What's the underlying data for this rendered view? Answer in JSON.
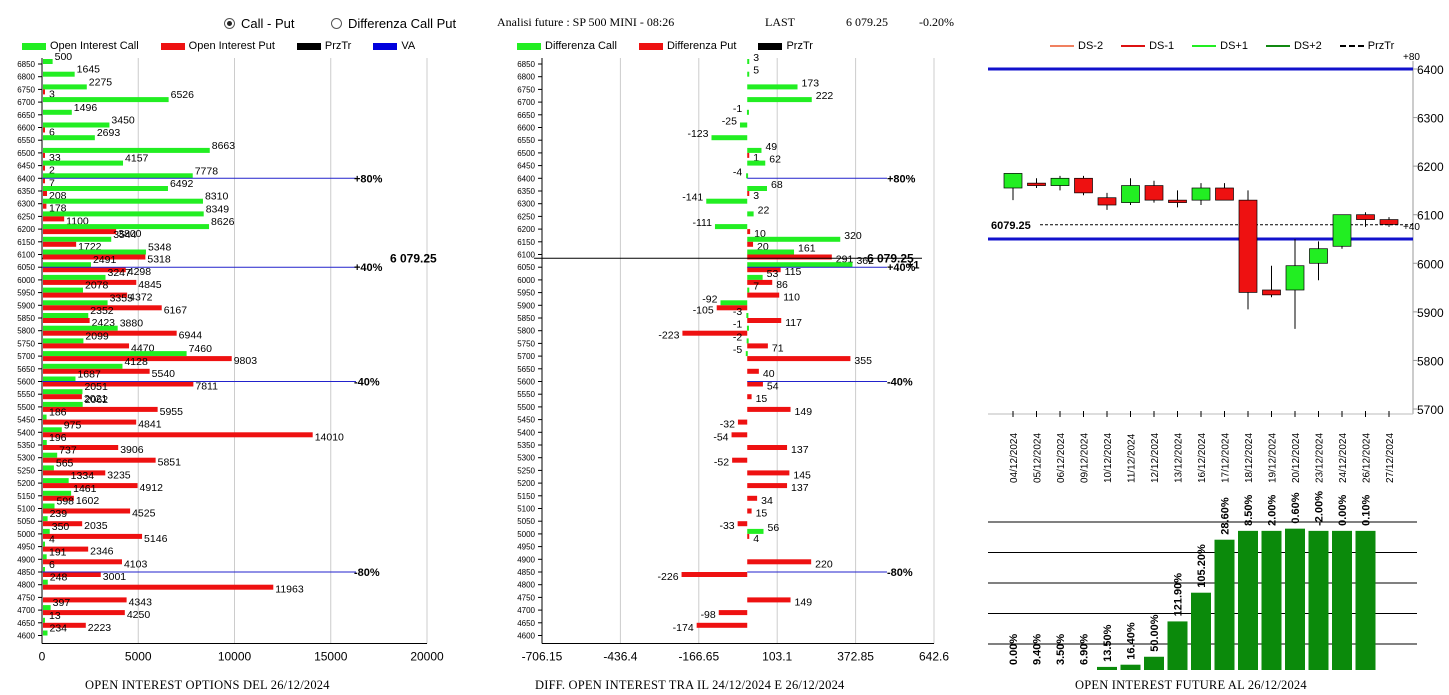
{
  "header": {
    "radio_options": [
      {
        "label": "Call - Put",
        "selected": true
      },
      {
        "label": "Differenza Call Put",
        "selected": false
      }
    ],
    "title": "Analisi future : SP 500 MINI - 08:26",
    "last_label": "LAST",
    "last_value": "6 079.25",
    "change": "-0.20%"
  },
  "colors": {
    "green": "#22ee22",
    "red": "#ee1111",
    "black": "#000000",
    "blue": "#0000dd",
    "dark_green": "#0b8a0b"
  },
  "legends": {
    "oi": [
      {
        "label": "Open Interest Call",
        "color": "#22ee22"
      },
      {
        "label": "Open Interest Put",
        "color": "#ee1111"
      },
      {
        "label": "PrzTr",
        "color": "#000000"
      },
      {
        "label": "VA",
        "color": "#0000dd"
      }
    ],
    "diff": [
      {
        "label": "Differenza Call",
        "color": "#22ee22"
      },
      {
        "label": "Differenza Put",
        "color": "#ee1111"
      },
      {
        "label": "PrzTr",
        "color": "#000000"
      }
    ],
    "future": [
      {
        "label": "DS-2",
        "color": "#f08060",
        "style": "solid"
      },
      {
        "label": "DS-1",
        "color": "#dd1111",
        "style": "solid"
      },
      {
        "label": "DS+1",
        "color": "#22ee22",
        "style": "solid"
      },
      {
        "label": "DS+2",
        "color": "#118811",
        "style": "solid"
      },
      {
        "label": "PrzTr",
        "color": "#000000",
        "style": "dashed"
      }
    ]
  },
  "footers": {
    "oi": "OPEN INTEREST OPTIONS DEL 26/12/2024",
    "diff": "DIFF. OPEN INTEREST TRA IL 24/12/2024 E 26/12/2024",
    "future": "OPEN INTEREST FUTURE AL 26/12/2024"
  },
  "chart_data": [
    {
      "type": "bar",
      "orientation": "horizontal",
      "strikes": [
        6850,
        6800,
        6750,
        6700,
        6650,
        6600,
        6550,
        6500,
        6450,
        6400,
        6350,
        6300,
        6250,
        6200,
        6150,
        6100,
        6050,
        6000,
        5950,
        5900,
        5850,
        5800,
        5750,
        5700,
        5650,
        5600,
        5550,
        5500,
        5450,
        5400,
        5350,
        5300,
        5250,
        5200,
        5150,
        5100,
        5050,
        5000,
        4950,
        4900,
        4850,
        4800,
        4750,
        4700,
        4650,
        4600
      ],
      "series": [
        {
          "name": "Open Interest Call",
          "values": [
            500,
            1645,
            2275,
            6526,
            1496,
            3450,
            2693,
            8663,
            4157,
            7778,
            6492,
            8310,
            8349,
            8626,
            3544,
            5348,
            2491,
            3247,
            2078,
            3355,
            2352,
            3880,
            2099,
            7460,
            4128,
            1687,
            2051,
            2062,
            186,
            975,
            196,
            737,
            565,
            1334,
            1461,
            598,
            239,
            350,
            4,
            191,
            6,
            248,
            null,
            397,
            13,
            234
          ]
        },
        {
          "name": "Open Interest Put",
          "values": [
            null,
            null,
            3,
            null,
            null,
            6,
            null,
            33,
            2,
            7,
            208,
            178,
            1100,
            3800,
            1722,
            5318,
            4298,
            4845,
            4372,
            6167,
            2423,
            6944,
            4470,
            9803,
            5540,
            7811,
            2021,
            5955,
            4841,
            14010,
            3906,
            5851,
            3235,
            4912,
            1602,
            4525,
            2035,
            5146,
            2346,
            4103,
            3001,
            11963,
            4343,
            4250,
            2223,
            null
          ]
        }
      ],
      "xlim": [
        0,
        20000
      ],
      "xticks": [
        0,
        5000,
        10000,
        15000,
        20000
      ],
      "price_label": "6 079.25",
      "markers": [
        {
          "label": "+80%",
          "strike": 6400
        },
        {
          "label": "+40%",
          "strike": 6050
        },
        {
          "label": "-40%",
          "strike": 5600
        },
        {
          "label": "-80%",
          "strike": 4850
        }
      ]
    },
    {
      "type": "bar",
      "orientation": "horizontal",
      "strikes": [
        6850,
        6800,
        6750,
        6700,
        6650,
        6600,
        6550,
        6500,
        6450,
        6400,
        6350,
        6300,
        6250,
        6200,
        6150,
        6100,
        6050,
        6000,
        5950,
        5900,
        5850,
        5800,
        5750,
        5700,
        5650,
        5600,
        5550,
        5500,
        5450,
        5400,
        5350,
        5300,
        5250,
        5200,
        5150,
        5100,
        5050,
        5000,
        4950,
        4900,
        4850,
        4800,
        4750,
        4700,
        4650,
        4600
      ],
      "series": [
        {
          "name": "Differenza Call",
          "values": [
            3,
            5,
            173,
            222,
            -1,
            -25,
            -123,
            49,
            62,
            -4,
            68,
            -141,
            22,
            -111,
            320,
            161,
            362,
            53,
            7,
            -92,
            -3,
            -1,
            -2,
            -5,
            null,
            null,
            null,
            null,
            null,
            null,
            null,
            null,
            null,
            null,
            null,
            null,
            null,
            56,
            null,
            null,
            null,
            null,
            null,
            null,
            null,
            null
          ]
        },
        {
          "name": "Differenza Put",
          "values": [
            null,
            null,
            null,
            null,
            null,
            null,
            null,
            1,
            null,
            null,
            3,
            null,
            null,
            10,
            20,
            291,
            115,
            86,
            110,
            -105,
            117,
            -223,
            71,
            355,
            40,
            54,
            15,
            149,
            -32,
            -54,
            137,
            -52,
            145,
            137,
            34,
            15,
            -33,
            4,
            null,
            220,
            -226,
            null,
            149,
            -98,
            -174,
            null
          ]
        }
      ],
      "xlim": [
        -706.15,
        642.6
      ],
      "xticks": [
        -706.15,
        -436.4,
        -166.65,
        103.1,
        372.85,
        642.6
      ],
      "price_label": "6 079.25",
      "markers": [
        {
          "label": "+80%",
          "strike": 6400
        },
        {
          "label": "+40%",
          "strike": 6050
        },
        {
          "label": "-40%",
          "strike": 5600
        },
        {
          "label": "-80%",
          "strike": 4850
        }
      ],
      "extra_labels": [
        "+1"
      ]
    },
    {
      "type": "candlestick",
      "dates": [
        "04/12/2024",
        "05/12/2024",
        "06/12/2024",
        "09/12/2024",
        "10/12/2024",
        "11/12/2024",
        "12/12/2024",
        "13/12/2024",
        "16/12/2024",
        "17/12/2024",
        "18/12/2024",
        "19/12/2024",
        "20/12/2024",
        "23/12/2024",
        "24/12/2024",
        "26/12/2024",
        "27/12/2024"
      ],
      "ohlc": [
        [
          6155,
          6185,
          6130,
          6185
        ],
        [
          6165,
          6175,
          6155,
          6160
        ],
        [
          6160,
          6180,
          6150,
          6175
        ],
        [
          6175,
          6180,
          6140,
          6145
        ],
        [
          6135,
          6145,
          6110,
          6120
        ],
        [
          6125,
          6175,
          6120,
          6160
        ],
        [
          6160,
          6170,
          6125,
          6130
        ],
        [
          6130,
          6150,
          6115,
          6125
        ],
        [
          6130,
          6165,
          6120,
          6155
        ],
        [
          6155,
          6165,
          6130,
          6130
        ],
        [
          6130,
          6150,
          5905,
          5940
        ],
        [
          5945,
          5995,
          5930,
          5935
        ],
        [
          5945,
          6050,
          5865,
          5995
        ],
        [
          6000,
          6045,
          5965,
          6030
        ],
        [
          6035,
          6100,
          6030,
          6100
        ],
        [
          6100,
          6105,
          6075,
          6090
        ],
        [
          6090,
          6095,
          6075,
          6080
        ]
      ],
      "ylim": [
        5700,
        6400
      ],
      "yticks": [
        5700,
        5800,
        5900,
        6000,
        6100,
        6200,
        6300,
        6400
      ],
      "price": 6079.25,
      "price_label": "6079.25",
      "lines": [
        {
          "value": 6400,
          "label": "+80"
        },
        {
          "value": 6050,
          "label": "+40"
        }
      ]
    },
    {
      "type": "bar",
      "categories": [
        "04/12/2024",
        "05/12/2024",
        "06/12/2024",
        "09/12/2024",
        "10/12/2024",
        "11/12/2024",
        "12/12/2024",
        "13/12/2024",
        "16/12/2024",
        "17/12/2024",
        "18/12/2024",
        "19/12/2024",
        "20/12/2024",
        "23/12/2024",
        "24/12/2024",
        "26/12/2024",
        "27/12/2024"
      ],
      "values": [
        0.0,
        9.4,
        3.5,
        6.9,
        13.5,
        16.4,
        50.0,
        121.9,
        105.2,
        28.6,
        8.5,
        2.0,
        0.6,
        -2.0,
        0.0,
        0.1,
        null
      ],
      "value_labels": [
        "0.00%",
        "9.40%",
        "3.50%",
        "6.90%",
        "13.50%",
        "16.40%",
        "50.00%",
        "121.90%",
        "105.20%",
        "28.60%",
        "8.50%",
        "2.00%",
        "0.60%",
        "-2.00%",
        "0.00%",
        "0.10%",
        ""
      ],
      "relative_heights": [
        0,
        0,
        0,
        0,
        0.014,
        0.024,
        0.06,
        0.22,
        0.35,
        0.59,
        0.63,
        0.63,
        0.64,
        0.63,
        0.63,
        0.63,
        0
      ]
    }
  ]
}
